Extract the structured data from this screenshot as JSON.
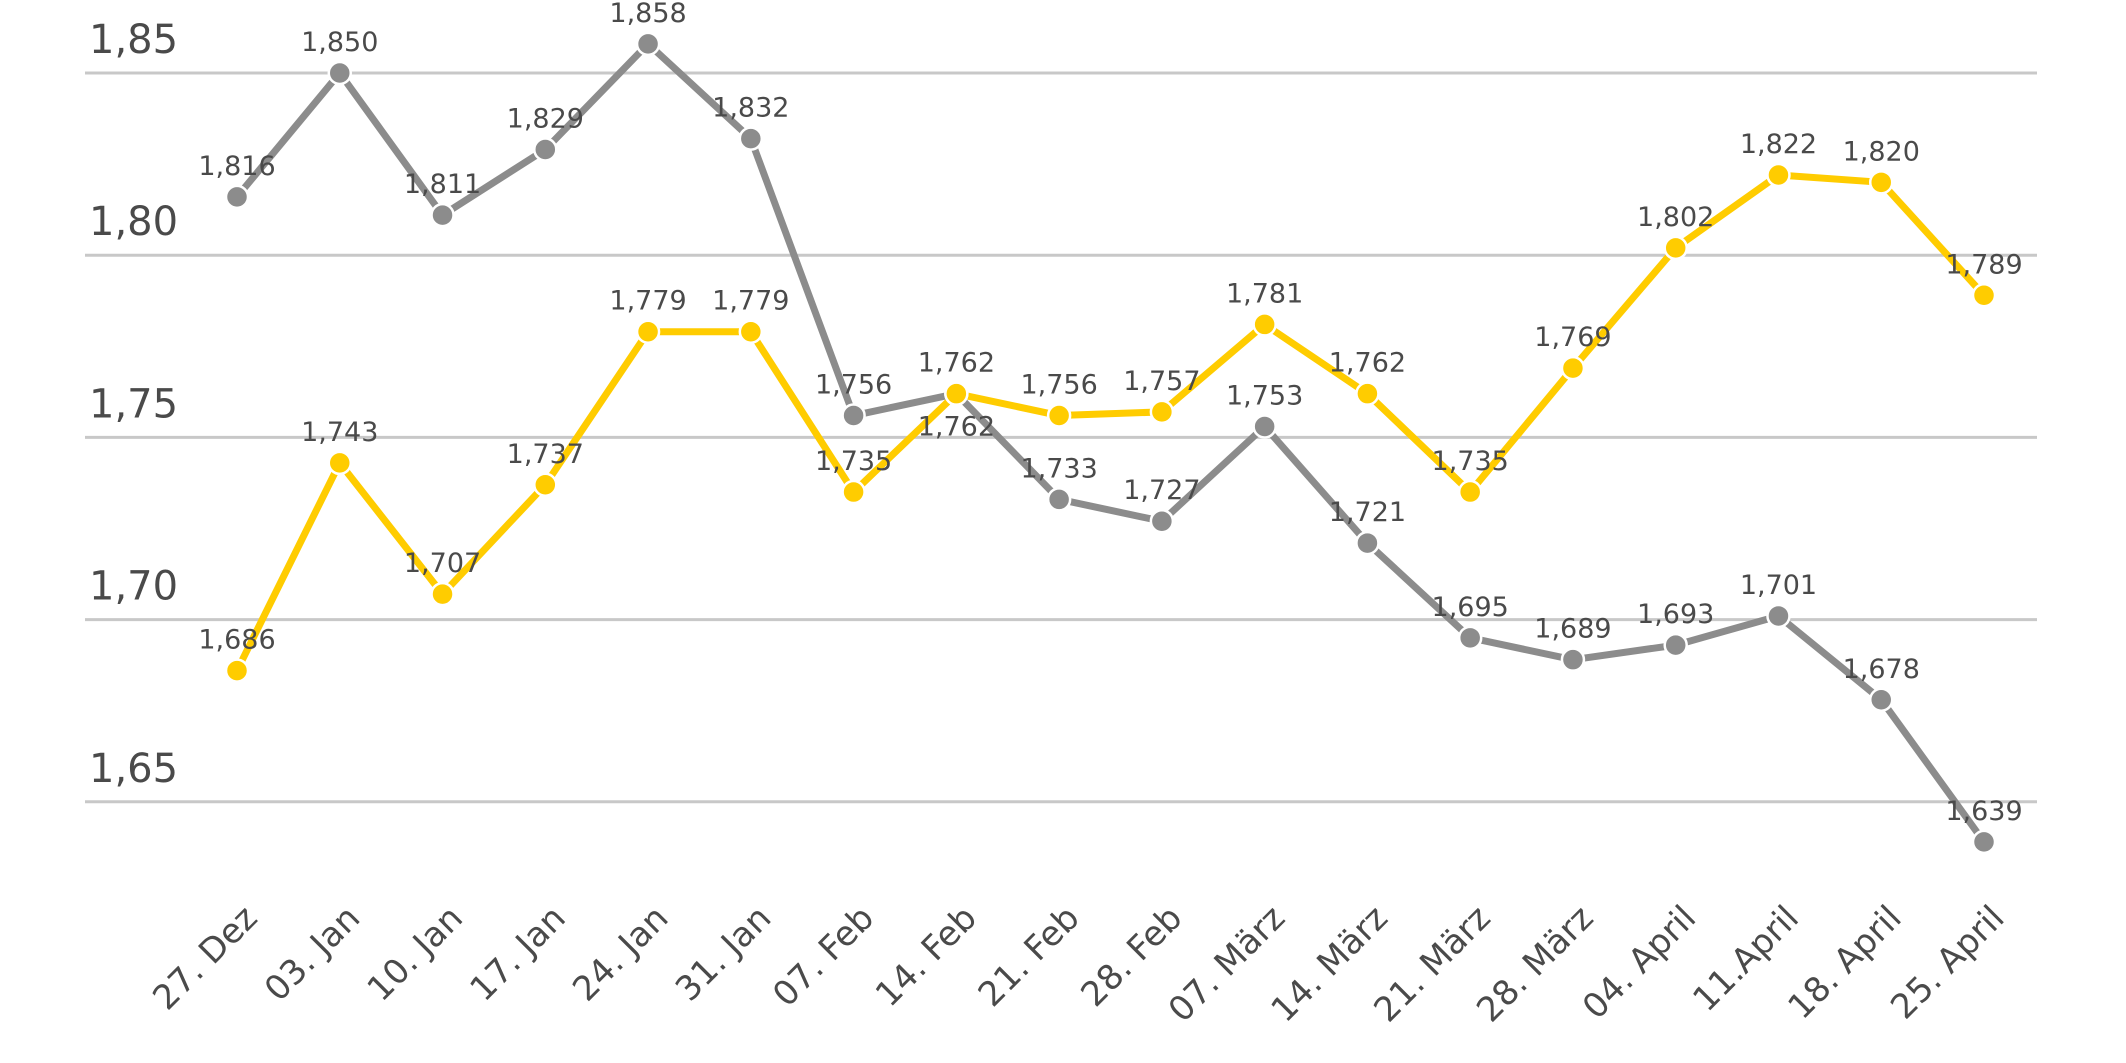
{
  "chart_data": {
    "type": "line",
    "title": "",
    "xlabel": "",
    "ylabel": "",
    "categories": [
      "27. Dez",
      "03. Jan",
      "10. Jan",
      "17. Jan",
      "24. Jan",
      "31. Jan",
      "07. Feb",
      "14. Feb",
      "21. Feb",
      "28. Feb",
      "07. März",
      "14. März",
      "21. März",
      "28. März",
      "04. April",
      "11.April",
      "18. April",
      "25. April"
    ],
    "y_ticks": [
      "1,65",
      "1,70",
      "1,75",
      "1,80",
      "1,85"
    ],
    "y_tick_values": [
      1.65,
      1.7,
      1.75,
      1.8,
      1.85
    ],
    "ylim": [
      1.63,
      1.865
    ],
    "grid": "horizontal",
    "legend": "none",
    "decimal_separator": ",",
    "series": [
      {
        "color": "#8c8c8c",
        "values": [
          1.816,
          1.85,
          1.811,
          1.829,
          1.858,
          1.832,
          1.756,
          1.762,
          1.733,
          1.727,
          1.753,
          1.721,
          1.695,
          1.689,
          1.693,
          1.701,
          1.678,
          1.639
        ]
      },
      {
        "color": "#ffcc00",
        "values": [
          1.686,
          1.743,
          1.707,
          1.737,
          1.779,
          1.779,
          1.735,
          1.762,
          1.756,
          1.757,
          1.781,
          1.762,
          1.735,
          1.769,
          1.802,
          1.822,
          1.82,
          1.789
        ]
      }
    ]
  }
}
